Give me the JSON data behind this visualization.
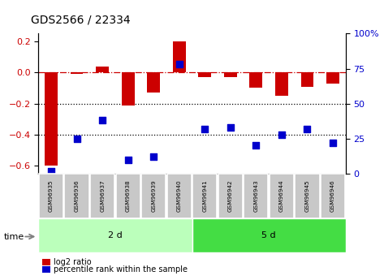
{
  "title": "GDS2566 / 22334",
  "samples": [
    "GSM96935",
    "GSM96936",
    "GSM96937",
    "GSM96938",
    "GSM96939",
    "GSM96940",
    "GSM96941",
    "GSM96942",
    "GSM96943",
    "GSM96944",
    "GSM96945",
    "GSM96946"
  ],
  "log2_ratio": [
    -0.6,
    -0.01,
    0.04,
    -0.21,
    -0.13,
    0.2,
    -0.03,
    -0.03,
    -0.1,
    -0.15,
    -0.09,
    -0.07
  ],
  "percentile_rank": [
    1.5,
    25,
    38,
    10,
    12,
    78,
    32,
    33,
    20,
    28,
    32,
    22
  ],
  "groups": [
    {
      "label": "2 d",
      "start": 0,
      "end": 6
    },
    {
      "label": "5 d",
      "start": 6,
      "end": 12
    }
  ],
  "group_colors": [
    "#bbffbb",
    "#44dd44"
  ],
  "bar_color": "#CC0000",
  "dot_color": "#0000CC",
  "ylim_left": [
    -0.65,
    0.25
  ],
  "ylim_right": [
    0,
    100
  ],
  "yticks_left": [
    -0.6,
    -0.4,
    -0.2,
    0.0,
    0.2
  ],
  "yticks_right": [
    0,
    25,
    50,
    75,
    100
  ],
  "hline_y": 0.0,
  "dotted_lines": [
    -0.2,
    -0.4
  ],
  "bg_color": "#FFFFFF",
  "sample_box_color": "#C8C8C8",
  "legend_log2": "log2 ratio",
  "legend_pct": "percentile rank within the sample"
}
